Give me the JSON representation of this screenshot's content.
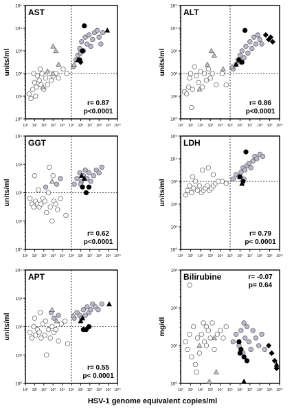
{
  "figure": {
    "xlabel": "HSV-1 genome equivalent copies/ml"
  },
  "colors": {
    "open": "#ffffff",
    "gray": "#b9b9cc",
    "black": "#000000",
    "triangle_gray": "#c8c8c8",
    "outline": "#555555"
  },
  "chart_data": [
    {
      "type": "scatter",
      "title": "AST",
      "ylabel": "units/ml",
      "ylog": [
        0,
        5
      ],
      "xlog": [
        0,
        10
      ],
      "yticks": [
        "10⁰",
        "10¹",
        "10²",
        "10³",
        "10⁴",
        "10⁵"
      ],
      "xticks": [
        "10⁰",
        "10¹",
        "10²",
        "10³",
        "10⁴",
        "10⁵",
        "10⁶",
        "10⁷",
        "10⁸",
        "10⁹",
        "10¹⁰"
      ],
      "ref_x": 5,
      "ref_y": 2,
      "stats": [
        "r= 0.87",
        "p<0.0001"
      ],
      "stats_pos": "bottom-right",
      "open": [
        [
          0.4,
          1.1
        ],
        [
          0.6,
          0.9
        ],
        [
          0.8,
          1.3
        ],
        [
          1.0,
          1.6
        ],
        [
          1.1,
          1.0
        ],
        [
          1.2,
          1.4
        ],
        [
          1.3,
          1.9
        ],
        [
          1.5,
          1.7
        ],
        [
          1.7,
          1.5
        ],
        [
          1.8,
          2.0
        ],
        [
          2.0,
          1.3
        ],
        [
          2.2,
          1.8
        ],
        [
          2.4,
          1.5
        ],
        [
          2.6,
          2.0
        ],
        [
          2.8,
          1.7
        ],
        [
          3.0,
          1.9
        ],
        [
          3.3,
          2.0
        ],
        [
          3.6,
          1.8
        ],
        [
          0.9,
          2.0
        ],
        [
          1.6,
          2.2
        ],
        [
          4.1,
          2.2
        ],
        [
          4.5,
          2.0
        ]
      ],
      "gray": [
        [
          5.2,
          2.3
        ],
        [
          5.5,
          2.6
        ],
        [
          5.7,
          2.8
        ],
        [
          5.9,
          3.1
        ],
        [
          6.1,
          3.4
        ],
        [
          6.3,
          3.0
        ],
        [
          6.5,
          3.6
        ],
        [
          6.7,
          3.3
        ],
        [
          6.9,
          3.7
        ],
        [
          7.1,
          3.2
        ],
        [
          7.3,
          3.5
        ],
        [
          7.5,
          3.8
        ],
        [
          7.8,
          3.9
        ],
        [
          8.0,
          3.6
        ],
        [
          8.2,
          3.3
        ],
        [
          8.4,
          3.8
        ],
        [
          6.0,
          2.9
        ]
      ],
      "black": [
        [
          5.9,
          2.6
        ],
        [
          6.2,
          3.0
        ],
        [
          6.4,
          4.1
        ]
      ],
      "tri_open": [
        [
          1.9,
          1.4
        ],
        [
          2.4,
          2.1
        ],
        [
          3.0,
          3.2
        ],
        [
          3.3,
          3.0
        ],
        [
          3.6,
          2.4
        ],
        [
          5.3,
          2.4
        ],
        [
          3.0,
          2.0
        ]
      ],
      "tri_black": [
        [
          8.9,
          3.9
        ],
        [
          5.7,
          2.6
        ]
      ],
      "dia_black": [
        [
          6.0,
          2.5
        ]
      ]
    },
    {
      "type": "scatter",
      "title": "ALT",
      "ylabel": "units/ml",
      "ylog": [
        0,
        5
      ],
      "xlog": [
        0,
        10
      ],
      "yticks": [
        "10⁰",
        "10¹",
        "10²",
        "10³",
        "10⁴",
        "10⁵"
      ],
      "xticks": [
        "10⁰",
        "10¹",
        "10²",
        "10³",
        "10⁴",
        "10⁵",
        "10⁶",
        "10⁷",
        "10⁸",
        "10⁹",
        "10¹⁰"
      ],
      "ref_x": 5,
      "ref_y": 2,
      "stats": [
        "r= 0.86",
        "p<0.0001"
      ],
      "stats_pos": "bottom-right",
      "open": [
        [
          0.4,
          1.2
        ],
        [
          0.6,
          1.1
        ],
        [
          0.8,
          1.4
        ],
        [
          1.0,
          2.0
        ],
        [
          1.2,
          1.3
        ],
        [
          1.4,
          2.3
        ],
        [
          1.6,
          1.9
        ],
        [
          1.8,
          1.6
        ],
        [
          2.0,
          2.1
        ],
        [
          2.2,
          1.4
        ],
        [
          2.4,
          2.0
        ],
        [
          2.6,
          1.7
        ],
        [
          2.8,
          2.2
        ],
        [
          3.0,
          1.8
        ],
        [
          3.2,
          2.0
        ],
        [
          3.6,
          1.5
        ],
        [
          1.1,
          0.5
        ],
        [
          0.9,
          1.8
        ],
        [
          4.2,
          2.0
        ],
        [
          4.6,
          1.5
        ]
      ],
      "gray": [
        [
          5.3,
          2.2
        ],
        [
          5.6,
          2.4
        ],
        [
          5.8,
          2.6
        ],
        [
          6.0,
          2.8
        ],
        [
          6.2,
          3.0
        ],
        [
          6.4,
          2.7
        ],
        [
          6.6,
          3.2
        ],
        [
          6.8,
          2.9
        ],
        [
          7.0,
          3.4
        ],
        [
          7.2,
          3.1
        ],
        [
          7.4,
          3.6
        ],
        [
          7.6,
          3.3
        ],
        [
          7.8,
          3.7
        ],
        [
          8.0,
          3.5
        ],
        [
          8.2,
          3.3
        ],
        [
          6.1,
          2.5
        ]
      ],
      "black": [
        [
          5.9,
          2.6
        ],
        [
          6.2,
          2.5
        ],
        [
          6.5,
          3.9
        ]
      ],
      "tri_open": [
        [
          1.9,
          1.3
        ],
        [
          2.7,
          2.4
        ],
        [
          3.1,
          3.0
        ],
        [
          3.4,
          2.8
        ],
        [
          4.3,
          2.2
        ],
        [
          5.2,
          2.3
        ]
      ],
      "tri_black": [
        [
          5.6,
          2.4
        ]
      ],
      "dia_black": [
        [
          8.6,
          3.7
        ],
        [
          8.9,
          3.5
        ],
        [
          9.1,
          3.6
        ],
        [
          9.3,
          3.4
        ]
      ]
    },
    {
      "type": "scatter",
      "title": "GGT",
      "ylabel": "units/ml",
      "ylog": [
        0,
        4
      ],
      "xlog": [
        0,
        10
      ],
      "yticks": [
        "10⁰",
        "10¹",
        "10²",
        "10³",
        "10⁴"
      ],
      "xticks": [
        "10⁰",
        "10¹",
        "10²",
        "10³",
        "10⁴",
        "10⁵",
        "10⁶",
        "10⁷",
        "10⁸",
        "10⁹",
        "10¹⁰"
      ],
      "ref_x": 5,
      "ref_y": 2,
      "stats": [
        "r= 0.62",
        "p<0.0001"
      ],
      "stats_pos": "bottom-right",
      "open": [
        [
          0.5,
          1.8
        ],
        [
          0.7,
          1.6
        ],
        [
          0.9,
          1.5
        ],
        [
          1.1,
          1.7
        ],
        [
          1.3,
          1.6
        ],
        [
          1.5,
          1.5
        ],
        [
          1.7,
          1.6
        ],
        [
          1.9,
          1.8
        ],
        [
          2.1,
          1.7
        ],
        [
          2.3,
          1.3
        ],
        [
          2.5,
          2.0
        ],
        [
          2.7,
          1.5
        ],
        [
          2.9,
          1.0
        ],
        [
          3.1,
          1.7
        ],
        [
          3.3,
          1.6
        ],
        [
          3.5,
          1.4
        ],
        [
          3.8,
          1.8
        ],
        [
          4.4,
          1.2
        ],
        [
          1.0,
          2.6
        ],
        [
          1.4,
          2.1
        ],
        [
          2.6,
          2.9
        ],
        [
          3.0,
          2.6
        ]
      ],
      "gray": [
        [
          2.2,
          2.2
        ],
        [
          3.4,
          2.3
        ],
        [
          3.8,
          2.5
        ],
        [
          5.3,
          2.3
        ],
        [
          5.6,
          2.5
        ],
        [
          5.9,
          2.7
        ],
        [
          6.1,
          2.4
        ],
        [
          6.3,
          2.6
        ],
        [
          6.5,
          2.8
        ],
        [
          6.7,
          2.5
        ],
        [
          6.9,
          2.7
        ],
        [
          7.1,
          2.4
        ],
        [
          7.4,
          2.6
        ],
        [
          7.7,
          2.8
        ],
        [
          8.0,
          2.7
        ],
        [
          8.3,
          2.9
        ],
        [
          6.0,
          2.3
        ]
      ],
      "black": [
        [
          6.2,
          2.2
        ],
        [
          6.6,
          2.0
        ],
        [
          6.9,
          2.2
        ]
      ],
      "tri_open": [
        [
          2.9,
          2.4
        ]
      ],
      "tri_black": [
        [
          6.1,
          2.6
        ],
        [
          6.4,
          2.5
        ]
      ],
      "dia_black": []
    },
    {
      "type": "scatter",
      "title": "LDH",
      "ylabel": "units/ml",
      "ylog": [
        0,
        5
      ],
      "xlog": [
        0,
        10
      ],
      "yticks": [
        "10⁰",
        "10¹",
        "10²",
        "10³",
        "10⁴",
        "10⁵"
      ],
      "xticks": [
        "10⁰",
        "10¹",
        "10²",
        "10³",
        "10⁴",
        "10⁵",
        "10⁶",
        "10⁷",
        "10⁸",
        "10⁹",
        "10¹⁰"
      ],
      "ref_x": 5,
      "ref_y": 3,
      "stats": [
        "r= 0.79",
        "p< 0.0001"
      ],
      "stats_pos": "bottom-right",
      "open": [
        [
          0.5,
          2.4
        ],
        [
          0.7,
          2.6
        ],
        [
          0.9,
          2.8
        ],
        [
          1.1,
          2.5
        ],
        [
          1.3,
          2.7
        ],
        [
          1.5,
          3.0
        ],
        [
          1.7,
          2.6
        ],
        [
          1.9,
          2.8
        ],
        [
          2.1,
          2.5
        ],
        [
          2.3,
          2.6
        ],
        [
          2.5,
          2.7
        ],
        [
          2.7,
          2.8
        ],
        [
          2.9,
          2.6
        ],
        [
          3.1,
          2.7
        ],
        [
          3.3,
          2.8
        ],
        [
          3.5,
          2.9
        ],
        [
          3.8,
          3.0
        ],
        [
          4.2,
          3.0
        ],
        [
          4.6,
          2.9
        ],
        [
          1.2,
          3.2
        ],
        [
          2.2,
          3.5
        ],
        [
          2.8,
          3.6
        ],
        [
          3.3,
          3.3
        ]
      ],
      "gray": [
        [
          5.3,
          3.1
        ],
        [
          5.6,
          3.3
        ],
        [
          5.9,
          3.2
        ],
        [
          6.1,
          3.4
        ],
        [
          6.3,
          3.6
        ],
        [
          6.5,
          3.5
        ],
        [
          6.7,
          3.7
        ],
        [
          6.9,
          3.8
        ],
        [
          7.1,
          3.6
        ],
        [
          7.3,
          3.9
        ],
        [
          7.5,
          4.1
        ],
        [
          7.7,
          4.0
        ],
        [
          8.0,
          4.2
        ],
        [
          8.3,
          4.1
        ],
        [
          6.4,
          3.1
        ]
      ],
      "black": [
        [
          6.0,
          3.2
        ],
        [
          6.3,
          3.0
        ],
        [
          6.6,
          4.3
        ]
      ],
      "tri_open": [],
      "tri_black": [
        [
          6.2,
          2.9
        ]
      ],
      "dia_black": []
    },
    {
      "type": "scatter",
      "title": "APT",
      "ylabel": "units/ml",
      "ylog": [
        0,
        4
      ],
      "xlog": [
        0,
        10
      ],
      "yticks": [
        "10⁰",
        "10¹",
        "10²",
        "10³",
        "10⁴"
      ],
      "xticks": [
        "10⁰",
        "10¹",
        "10²",
        "10³",
        "10⁴",
        "10⁵",
        "10⁶",
        "10⁷",
        "10⁸",
        "10⁹",
        "10¹⁰"
      ],
      "ref_x": 5,
      "ref_y": 2,
      "stats": [
        "r= 0.55",
        "p< 0.0001"
      ],
      "stats_pos": "bottom-right",
      "open": [
        [
          0.5,
          1.8
        ],
        [
          0.7,
          1.6
        ],
        [
          0.9,
          2.0
        ],
        [
          1.1,
          1.7
        ],
        [
          1.3,
          1.9
        ],
        [
          1.5,
          1.8
        ],
        [
          1.7,
          1.6
        ],
        [
          1.9,
          2.1
        ],
        [
          2.1,
          1.7
        ],
        [
          2.3,
          1.0
        ],
        [
          2.5,
          1.9
        ],
        [
          2.7,
          1.6
        ],
        [
          2.9,
          2.0
        ],
        [
          3.1,
          1.8
        ],
        [
          3.3,
          1.9
        ],
        [
          3.6,
          1.5
        ],
        [
          3.9,
          2.1
        ],
        [
          4.3,
          2.2
        ],
        [
          4.6,
          1.4
        ],
        [
          1.0,
          2.3
        ],
        [
          1.6,
          2.5
        ],
        [
          2.2,
          2.2
        ]
      ],
      "gray": [
        [
          2.8,
          2.5
        ],
        [
          3.1,
          2.3
        ],
        [
          3.6,
          2.4
        ],
        [
          5.3,
          2.3
        ],
        [
          5.6,
          2.5
        ],
        [
          5.9,
          2.4
        ],
        [
          6.1,
          2.3
        ],
        [
          6.3,
          2.6
        ],
        [
          6.5,
          2.4
        ],
        [
          6.7,
          2.7
        ],
        [
          6.9,
          2.5
        ],
        [
          7.1,
          2.6
        ],
        [
          7.3,
          2.8
        ],
        [
          7.6,
          2.7
        ],
        [
          7.9,
          2.6
        ],
        [
          8.3,
          2.8
        ]
      ],
      "black": [
        [
          6.3,
          1.9
        ],
        [
          6.6,
          1.9
        ],
        [
          6.9,
          2.0
        ]
      ],
      "tri_open": [
        [
          2.9,
          2.6
        ],
        [
          3.4,
          2.2
        ],
        [
          5.2,
          2.4
        ]
      ],
      "tri_black": [
        [
          6.0,
          2.2
        ],
        [
          6.2,
          2.3
        ],
        [
          9.1,
          2.8
        ]
      ],
      "dia_black": []
    },
    {
      "type": "scatter",
      "title": "Bilirubine",
      "ylabel": "mg/dl",
      "ylog": [
        0,
        3
      ],
      "xlog": [
        0,
        10
      ],
      "yticks": [
        "10⁰",
        "10¹",
        "10²",
        "10³"
      ],
      "xticks": [
        "10⁰",
        "10¹",
        "10²",
        "10³",
        "10⁴",
        "10⁵",
        "10⁶",
        "10⁷",
        "10⁸",
        "10⁹",
        "10¹⁰"
      ],
      "ref_x": null,
      "ref_y": null,
      "stats": [
        "r= -0.07",
        "p= 0.64"
      ],
      "stats_pos": "top-right",
      "open": [
        [
          0.5,
          1.1
        ],
        [
          0.7,
          0.9
        ],
        [
          0.9,
          1.3
        ],
        [
          1.1,
          0.7
        ],
        [
          1.3,
          1.5
        ],
        [
          1.5,
          0.5
        ],
        [
          1.6,
          0.3
        ],
        [
          1.7,
          1.2
        ],
        [
          1.9,
          0.8
        ],
        [
          2.1,
          1.3
        ],
        [
          2.3,
          1.6
        ],
        [
          2.4,
          1.1
        ],
        [
          2.6,
          1.0
        ],
        [
          2.8,
          1.4
        ],
        [
          3.0,
          1.2
        ],
        [
          3.2,
          1.6
        ],
        [
          3.4,
          0.9
        ],
        [
          3.7,
          1.3
        ],
        [
          4.0,
          1.4
        ],
        [
          4.3,
          1.2
        ],
        [
          4.6,
          1.5
        ],
        [
          0.9,
          2.6
        ],
        [
          2.6,
          1.5
        ]
      ],
      "gray": [
        [
          5.3,
          1.1
        ],
        [
          5.6,
          1.3
        ],
        [
          5.9,
          1.0
        ],
        [
          6.1,
          1.4
        ],
        [
          6.3,
          0.8
        ],
        [
          6.5,
          1.2
        ],
        [
          6.7,
          1.5
        ],
        [
          6.9,
          1.1
        ],
        [
          7.1,
          0.9
        ],
        [
          7.3,
          1.4
        ],
        [
          7.6,
          1.2
        ],
        [
          7.9,
          1.0
        ],
        [
          8.2,
          1.3
        ],
        [
          8.5,
          0.9
        ],
        [
          6.4,
          1.6
        ]
      ],
      "black": [
        [
          5.9,
          1.1
        ],
        [
          6.1,
          0.9
        ],
        [
          6.4,
          0.7
        ],
        [
          6.7,
          0.6
        ],
        [
          6.0,
          0.8
        ]
      ],
      "tri_open": [
        [
          2.9,
          0.05
        ],
        [
          3.4,
          1.2
        ],
        [
          3.6,
          0.3
        ],
        [
          1.9,
          1.0
        ]
      ],
      "tri_black": [
        [
          6.4,
          0.05
        ],
        [
          9.7,
          0.5
        ]
      ],
      "dia_black": [
        [
          8.9,
          1.0
        ],
        [
          9.2,
          0.8
        ],
        [
          9.5,
          0.6
        ],
        [
          9.7,
          0.4
        ]
      ]
    }
  ]
}
